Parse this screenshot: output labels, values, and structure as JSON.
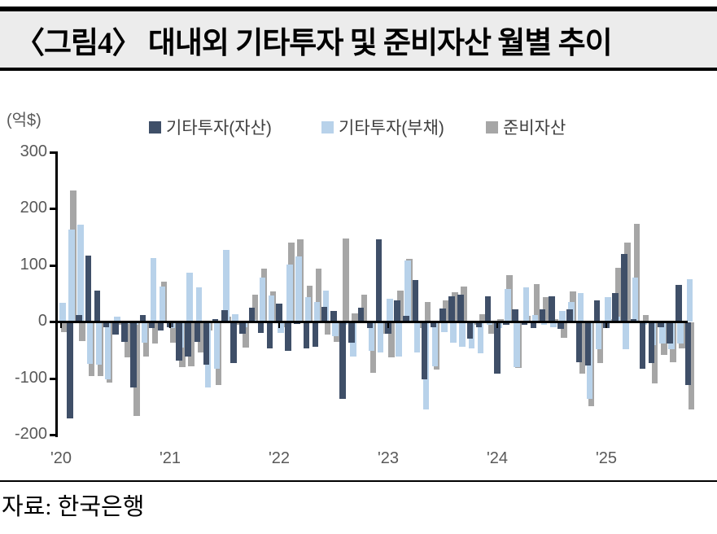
{
  "title": "〈그림4〉 대내외 기타투자 및 준비자산 월별 추이",
  "unit_label": "(억$)",
  "source_text": "자료: 한국은행",
  "colors": {
    "asset": "#3f4f68",
    "liability": "#b8d2ea",
    "reserve": "#a6a6a6",
    "axis": "#000000",
    "tick_text": "#595959",
    "legend_text": "#404040",
    "title_bg": "#ececec"
  },
  "legend": [
    {
      "key": "asset",
      "label": "기타투자(자산)"
    },
    {
      "key": "liability",
      "label": "기타투자(부채)"
    },
    {
      "key": "reserve",
      "label": "준비자산"
    }
  ],
  "chart_data": {
    "type": "bar",
    "title": "대내외 기타투자 및 준비자산 월별 추이",
    "ylabel": "(억$)",
    "ylim": [
      -200,
      300
    ],
    "yticks": [
      300,
      200,
      100,
      0,
      -100,
      -200
    ],
    "grid": false,
    "legend_position": "top",
    "months_start": "2020-01",
    "months_per_year": 12,
    "x_year_labels": [
      "'20",
      "'21",
      "'22",
      "'23",
      "'24",
      "'25"
    ],
    "series": [
      {
        "name": "기타투자(자산)",
        "key": "asset",
        "color": "#3f4f68",
        "values": [
          -2,
          -170,
          12,
          117,
          55,
          -8,
          -22,
          -34,
          -115,
          12,
          -10,
          -15,
          -8,
          -67,
          -60,
          -35,
          -75,
          5,
          20,
          -72,
          -20,
          25,
          -18,
          -46,
          31,
          -50,
          -3,
          -46,
          -43,
          26,
          19,
          -135,
          -36,
          25,
          -10,
          145,
          -20,
          38,
          10,
          74,
          -100,
          -8,
          23,
          44,
          48,
          -29,
          -8,
          44,
          -91,
          -5,
          22,
          -5,
          -10,
          22,
          44,
          -12,
          22,
          -70,
          -76,
          37,
          -10,
          50,
          119,
          5,
          -82,
          -72,
          -8,
          -37,
          65,
          -111
        ]
      },
      {
        "name": "기타투자(부채)",
        "key": "liability",
        "color": "#b8d2ea",
        "values": [
          33,
          163,
          171,
          -74,
          -75,
          -100,
          8,
          -3,
          -5,
          -36,
          112,
          62,
          -10,
          -45,
          87,
          61,
          -115,
          -82,
          127,
          13,
          -8,
          3,
          77,
          46,
          -19,
          101,
          115,
          43,
          34,
          54,
          -24,
          -5,
          -60,
          -2,
          -50,
          -53,
          41,
          -60,
          108,
          -53,
          -154,
          -77,
          -17,
          -36,
          -43,
          -46,
          -55,
          -5,
          -10,
          57,
          -79,
          60,
          12,
          -5,
          -8,
          18,
          35,
          50,
          -135,
          -48,
          43,
          8,
          -48,
          77,
          -5,
          -40,
          -38,
          -48,
          -37,
          75
        ]
      },
      {
        "name": "준비자산",
        "key": "reserve",
        "color": "#a6a6a6",
        "values": [
          -17,
          232,
          -33,
          -95,
          -95,
          -107,
          -5,
          -62,
          -166,
          -60,
          -38,
          70,
          -36,
          -79,
          -78,
          -53,
          -15,
          -111,
          8,
          -5,
          -44,
          48,
          94,
          53,
          -8,
          139,
          145,
          63,
          94,
          -22,
          -34,
          147,
          14,
          48,
          -89,
          -20,
          -62,
          54,
          111,
          -10,
          34,
          -84,
          38,
          52,
          62,
          -5,
          13,
          -20,
          5,
          82,
          -81,
          10,
          66,
          43,
          5,
          -28,
          53,
          -90,
          -148,
          -72,
          5,
          95,
          140,
          173,
          12,
          -108,
          -58,
          -70,
          -46,
          -154
        ]
      }
    ]
  }
}
